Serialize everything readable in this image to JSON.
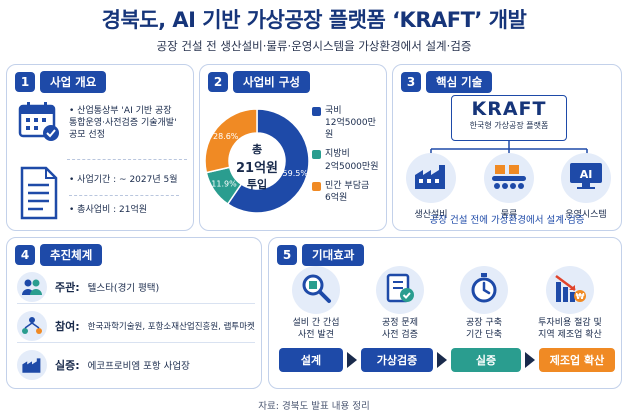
{
  "title": "경북도, AI 기반 가상공장 플랫폼 ‘KRAFT’ 개발",
  "subtitle": "공장 건설 전 생산설비·물류·운영시스템을 가상환경에서 설계·검증",
  "colors": {
    "primary": "#1e4aa8",
    "teal": "#2a9d8f",
    "orange": "#f08a24",
    "light": "#e4ecf9"
  },
  "overview": {
    "num": "1",
    "title": "사업 개요",
    "items": [
      {
        "icon": "calendar-check-icon",
        "text": "산업통상부 'AI 기반 공장 통합운영·사전검증 기술개발' 공모 선정"
      },
      {
        "icon": "document-icon",
        "text": "사업기간 : ~ 2027년 5월"
      },
      {
        "icon": "document-icon",
        "text": "총사업비 : 21억원"
      }
    ]
  },
  "budget": {
    "num": "2",
    "title": "사업비 구성",
    "center_line1": "총",
    "center_line2": "21억원",
    "center_line3": "투입",
    "legend": [
      {
        "name": "국비",
        "amount": "12억5000만원"
      },
      {
        "name": "지방비",
        "amount": "2억5000만원"
      },
      {
        "name": "민간 부담금",
        "amount": "6억원"
      }
    ]
  },
  "chart_data": {
    "type": "pie",
    "categories": [
      "국비",
      "지방비",
      "민간 부담금"
    ],
    "values": [
      59.5,
      11.9,
      28.6
    ],
    "value_labels": [
      "59.5%",
      "11.9%",
      "28.6%"
    ],
    "colors": [
      "#1e4aa8",
      "#2a9d8f",
      "#f08a24"
    ]
  },
  "core": {
    "num": "3",
    "title": "핵심 기술",
    "brand": "KRAFT",
    "brand_sub": "한국형 가상공장 플랫폼",
    "items": [
      {
        "icon": "factory-icon",
        "label": "생산설비"
      },
      {
        "icon": "conveyor-icon",
        "label": "물류"
      },
      {
        "icon": "ai-monitor-icon",
        "label": "운영시스템"
      }
    ],
    "footer": "공장 건설 전에 가상환경에서 설계·검증"
  },
  "progress": {
    "num": "4",
    "title": "추진체계",
    "rows": [
      {
        "icon": "people-icon",
        "key": "주관:",
        "value": "텔스타(경기 평택)"
      },
      {
        "icon": "network-icon",
        "key": "참여:",
        "value": "한국과학기술원, 포항소재산업진흥원, 랩투마켓"
      },
      {
        "icon": "factory-icon",
        "key": "실증:",
        "value": "에코프로비엠 포항 사업장"
      }
    ]
  },
  "effects": {
    "num": "5",
    "title": "기대효과",
    "items": [
      {
        "icon": "magnifier-box-icon",
        "line1": "설비 간 간섭",
        "line2": "사전 발견"
      },
      {
        "icon": "checklist-icon",
        "line1": "공정 문제",
        "line2": "사전 검증"
      },
      {
        "icon": "stopwatch-icon",
        "line1": "공장 구축",
        "line2": "기간 단축"
      },
      {
        "icon": "cost-down-chart-icon",
        "line1": "투자비용 절감 및",
        "line2": "지역 제조업 확산"
      }
    ],
    "flow": [
      "설계",
      "가상검증",
      "실증",
      "제조업 확산"
    ]
  },
  "source": "자료: 경북도 발표 내용 정리"
}
